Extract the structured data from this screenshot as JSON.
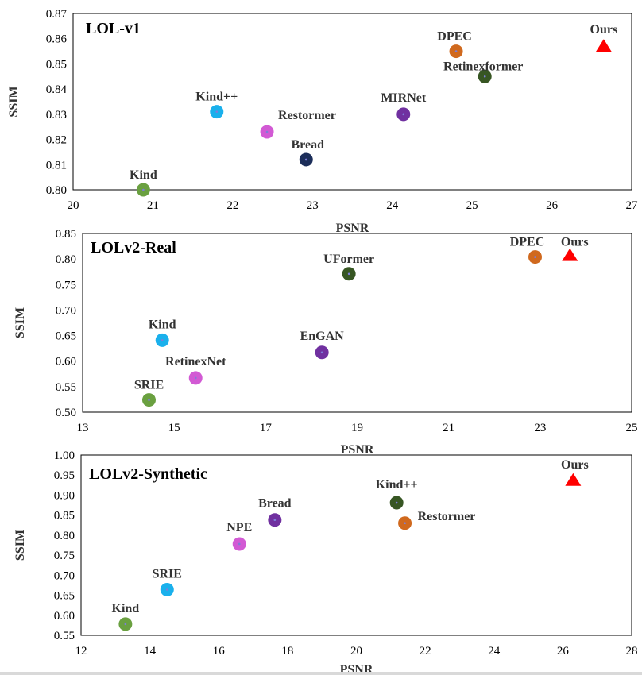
{
  "chart_data": [
    {
      "type": "scatter",
      "title": "LOL-v1",
      "xlabel": "PSNR",
      "ylabel": "SSIM",
      "xlim": [
        20,
        27
      ],
      "ylim": [
        0.8,
        0.87
      ],
      "xticks": [
        "20",
        "21",
        "22",
        "23",
        "24",
        "25",
        "26",
        "27"
      ],
      "yticks": [
        "0.80",
        "0.81",
        "0.82",
        "0.83",
        "0.84",
        "0.85",
        "0.86",
        "0.87"
      ],
      "points": [
        {
          "name": "Kind",
          "x": 20.88,
          "y": 0.8,
          "color": "#6aa040",
          "marker": "circle"
        },
        {
          "name": "Kind++",
          "x": 21.8,
          "y": 0.831,
          "color": "#1ab0ec",
          "marker": "circle"
        },
        {
          "name": "Restormer",
          "x": 22.43,
          "y": 0.823,
          "color": "#d25ad4",
          "marker": "circle"
        },
        {
          "name": "Bread",
          "x": 22.92,
          "y": 0.812,
          "color": "#1c2e5a",
          "marker": "circle"
        },
        {
          "name": "MIRNet",
          "x": 24.14,
          "y": 0.83,
          "color": "#7030a0",
          "marker": "circle"
        },
        {
          "name": "DPEC",
          "x": 24.8,
          "y": 0.855,
          "color": "#d0691e",
          "marker": "circle"
        },
        {
          "name": "Retinexformer",
          "x": 25.16,
          "y": 0.845,
          "color": "#375623",
          "marker": "circle"
        },
        {
          "name": "Ours",
          "x": 26.65,
          "y": 0.857,
          "color": "#ff0000",
          "marker": "triangle"
        }
      ]
    },
    {
      "type": "scatter",
      "title": "LOLv2-Real",
      "xlabel": "PSNR",
      "ylabel": "SSIM",
      "xlim": [
        13,
        25
      ],
      "ylim": [
        0.5,
        0.85
      ],
      "xticks": [
        "13",
        "15",
        "17",
        "19",
        "21",
        "23",
        "25"
      ],
      "yticks": [
        "0.50",
        "0.55",
        "0.60",
        "0.65",
        "0.70",
        "0.75",
        "0.80",
        "0.85"
      ],
      "points": [
        {
          "name": "SRIE",
          "x": 14.45,
          "y": 0.524,
          "color": "#6aa040",
          "marker": "circle"
        },
        {
          "name": "Kind",
          "x": 14.74,
          "y": 0.641,
          "color": "#1ab0ec",
          "marker": "circle"
        },
        {
          "name": "RetinexNet",
          "x": 15.47,
          "y": 0.567,
          "color": "#d25ad4",
          "marker": "circle"
        },
        {
          "name": "EnGAN",
          "x": 18.23,
          "y": 0.617,
          "color": "#7030a0",
          "marker": "circle"
        },
        {
          "name": "UFormer",
          "x": 18.82,
          "y": 0.771,
          "color": "#375623",
          "marker": "circle"
        },
        {
          "name": "DPEC",
          "x": 22.89,
          "y": 0.804,
          "color": "#d0691e",
          "marker": "circle"
        },
        {
          "name": "Ours",
          "x": 23.65,
          "y": 0.807,
          "color": "#ff0000",
          "marker": "triangle"
        }
      ]
    },
    {
      "type": "scatter",
      "title": "LOLv2-Synthetic",
      "xlabel": "PSNR",
      "ylabel": "SSIM",
      "xlim": [
        12,
        28
      ],
      "ylim": [
        0.55,
        1.0
      ],
      "xticks": [
        "12",
        "14",
        "16",
        "18",
        "20",
        "22",
        "24",
        "26",
        "28"
      ],
      "yticks": [
        "0.55",
        "0.60",
        "0.65",
        "0.70",
        "0.75",
        "0.80",
        "0.85",
        "0.90",
        "0.95",
        "1.00"
      ],
      "points": [
        {
          "name": "Kind",
          "x": 13.29,
          "y": 0.578,
          "color": "#6aa040",
          "marker": "circle"
        },
        {
          "name": "SRIE",
          "x": 14.5,
          "y": 0.664,
          "color": "#1ab0ec",
          "marker": "circle"
        },
        {
          "name": "NPE",
          "x": 16.6,
          "y": 0.778,
          "color": "#d25ad4",
          "marker": "circle"
        },
        {
          "name": "Bread",
          "x": 17.63,
          "y": 0.838,
          "color": "#7030a0",
          "marker": "circle"
        },
        {
          "name": "Kind++",
          "x": 21.17,
          "y": 0.881,
          "color": "#375623",
          "marker": "circle"
        },
        {
          "name": "Restormer",
          "x": 21.41,
          "y": 0.83,
          "color": "#d0691e",
          "marker": "circle"
        },
        {
          "name": "Ours",
          "x": 26.3,
          "y": 0.937,
          "color": "#ff0000",
          "marker": "triangle"
        }
      ]
    }
  ]
}
